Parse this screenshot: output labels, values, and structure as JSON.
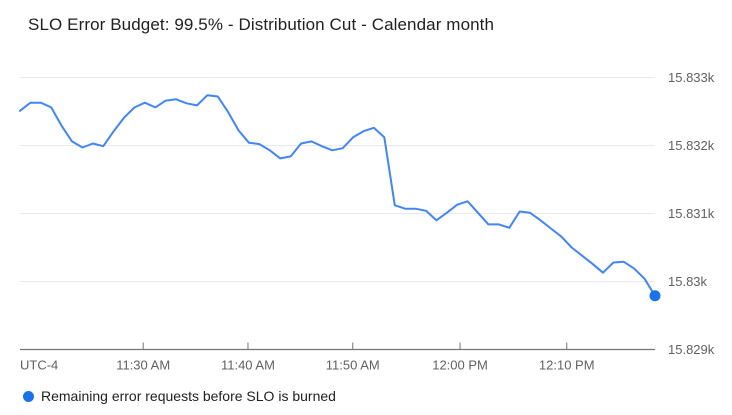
{
  "chart_data": {
    "type": "line",
    "title": "SLO Error Budget: 99.5% - Distribution Cut - Calendar month",
    "timezone_label": "UTC-4",
    "legend_position": "bottom",
    "grid": "horizontal",
    "grid_color": "#e9e9e9",
    "axis_color": "#757575",
    "axis_label_color": "#616161",
    "ylim": [
      15829,
      15833
    ],
    "x_ticks": [
      {
        "label": "11:30 AM",
        "pos": 0.194
      },
      {
        "label": "11:40 AM",
        "pos": 0.359
      },
      {
        "label": "11:50 AM",
        "pos": 0.524
      },
      {
        "label": "12:00 PM",
        "pos": 0.693
      },
      {
        "label": "12:10 PM",
        "pos": 0.861
      }
    ],
    "y_ticks": [
      {
        "label": "15.833k",
        "value": 15833
      },
      {
        "label": "15.832k",
        "value": 15832
      },
      {
        "label": "15.831k",
        "value": 15831
      },
      {
        "label": "15.83k",
        "value": 15830
      },
      {
        "label": "15.829k",
        "value": 15829
      }
    ],
    "series": [
      {
        "name": "Remaining error requests before SLO is burned",
        "color": "#4285f4",
        "marker_color": "#1a73e8",
        "end_dot": true,
        "values": [
          15832.51,
          15832.63,
          15832.63,
          15832.56,
          15832.29,
          15832.06,
          15831.97,
          15832.03,
          15831.99,
          15832.21,
          15832.41,
          15832.56,
          15832.63,
          15832.56,
          15832.66,
          15832.68,
          15832.62,
          15832.59,
          15832.74,
          15832.72,
          15832.49,
          15832.22,
          15832.04,
          15832.02,
          15831.93,
          15831.81,
          15831.84,
          15832.03,
          15832.06,
          15831.99,
          15831.93,
          15831.96,
          15832.12,
          15832.21,
          15832.26,
          15832.12,
          15831.12,
          15831.07,
          15831.07,
          15831.04,
          15830.9,
          15831.01,
          15831.13,
          15831.18,
          15831.01,
          15830.84,
          15830.84,
          15830.79,
          15831.03,
          15831.01,
          15830.9,
          15830.78,
          15830.66,
          15830.5,
          15830.38,
          15830.26,
          15830.13,
          15830.28,
          15830.29,
          15830.19,
          15830.04,
          15829.79
        ]
      }
    ]
  }
}
